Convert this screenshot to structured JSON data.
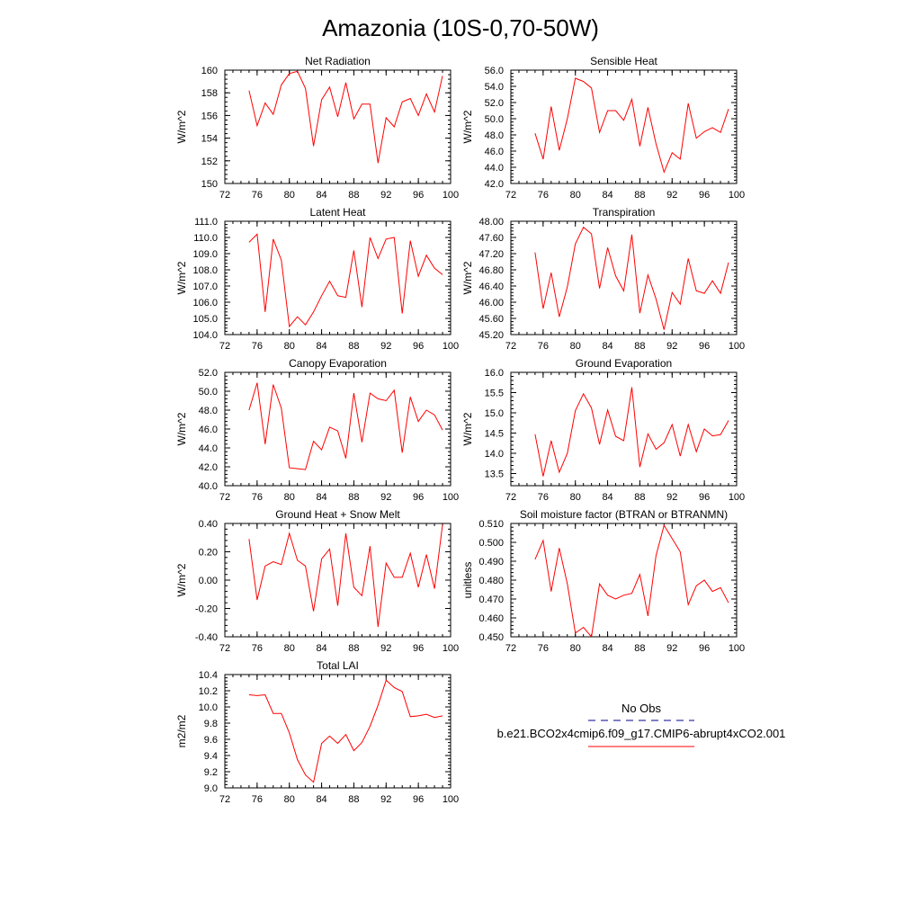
{
  "page_title": "Amazonia (10S-0,70-50W)",
  "colors": {
    "model_line": "#ff0000",
    "obs_line": "#00008b",
    "axis": "#000000"
  },
  "legend": {
    "obs_label": "No Obs",
    "model_label": "b.e21.BCO2x4cmip6.f09_g17.CMIP6-abrupt4xCO2.001"
  },
  "chart_data": [
    {
      "type": "line",
      "title": "Net Radiation",
      "ylabel": "W/m^2",
      "xlim": [
        72,
        100
      ],
      "ylim": [
        150,
        160
      ],
      "xticks": [
        "72",
        "76",
        "80",
        "84",
        "88",
        "92",
        "96",
        "100"
      ],
      "yticks": [
        "150",
        "152",
        "154",
        "156",
        "158",
        "160"
      ],
      "series": [
        {
          "x": [
            75,
            76,
            77,
            78,
            79,
            80,
            81,
            82,
            83,
            84,
            85,
            86,
            87,
            88,
            89,
            90,
            91,
            92,
            93,
            94,
            95,
            96,
            97,
            98,
            99
          ],
          "values": [
            158.2,
            155.1,
            157.1,
            156.1,
            158.7,
            159.7,
            159.9,
            158.4,
            153.3,
            157.4,
            158.5,
            155.9,
            158.9,
            155.7,
            157.0,
            157.0,
            151.8,
            155.8,
            155.0,
            157.2,
            157.5,
            156.0,
            157.9,
            156.3,
            159.5
          ]
        }
      ]
    },
    {
      "type": "line",
      "title": "Sensible Heat",
      "ylabel": "W/m^2",
      "xlim": [
        72,
        100
      ],
      "ylim": [
        42.0,
        56.0
      ],
      "xticks": [
        "72",
        "76",
        "80",
        "84",
        "88",
        "92",
        "96",
        "100"
      ],
      "yticks": [
        "42.0",
        "44.0",
        "46.0",
        "48.0",
        "50.0",
        "52.0",
        "54.0",
        "56.0"
      ],
      "series": [
        {
          "x": [
            75,
            76,
            77,
            78,
            79,
            80,
            81,
            82,
            83,
            84,
            85,
            86,
            87,
            88,
            89,
            90,
            91,
            92,
            93,
            94,
            95,
            96,
            97,
            98,
            99
          ],
          "values": [
            48.2,
            45.0,
            51.5,
            46.1,
            50.0,
            55.0,
            54.6,
            53.8,
            48.3,
            51.0,
            51.0,
            49.8,
            52.4,
            46.6,
            51.4,
            46.9,
            43.4,
            45.8,
            45.0,
            51.9,
            47.6,
            48.4,
            48.9,
            48.3,
            51.2
          ]
        }
      ]
    },
    {
      "type": "line",
      "title": "Latent Heat",
      "ylabel": "W/m^2",
      "xlim": [
        72,
        100
      ],
      "ylim": [
        104.0,
        111.0
      ],
      "xticks": [
        "72",
        "76",
        "80",
        "84",
        "88",
        "92",
        "96",
        "100"
      ],
      "yticks": [
        "104.0",
        "105.0",
        "106.0",
        "107.0",
        "108.0",
        "109.0",
        "110.0",
        "111.0"
      ],
      "series": [
        {
          "x": [
            75,
            76,
            77,
            78,
            79,
            80,
            81,
            82,
            83,
            84,
            85,
            86,
            87,
            88,
            89,
            90,
            91,
            92,
            93,
            94,
            95,
            96,
            97,
            98,
            99
          ],
          "values": [
            109.7,
            110.2,
            105.4,
            109.9,
            108.6,
            104.5,
            105.1,
            104.6,
            105.4,
            106.4,
            107.3,
            106.4,
            106.3,
            109.2,
            105.7,
            110.0,
            108.7,
            109.9,
            110.0,
            105.3,
            109.8,
            107.6,
            108.9,
            108.1,
            107.7
          ]
        }
      ]
    },
    {
      "type": "line",
      "title": "Transpiration",
      "ylabel": "W/m^2",
      "xlim": [
        72,
        100
      ],
      "ylim": [
        45.2,
        48.0
      ],
      "xticks": [
        "72",
        "76",
        "80",
        "84",
        "88",
        "92",
        "96",
        "100"
      ],
      "yticks": [
        "45.20",
        "45.60",
        "46.00",
        "46.40",
        "46.80",
        "47.20",
        "47.60",
        "48.00"
      ],
      "series": [
        {
          "x": [
            75,
            76,
            77,
            78,
            79,
            80,
            81,
            82,
            83,
            84,
            85,
            86,
            87,
            88,
            89,
            90,
            91,
            92,
            93,
            94,
            95,
            96,
            97,
            98,
            99
          ],
          "values": [
            47.23,
            45.84,
            46.73,
            45.64,
            46.38,
            47.44,
            47.85,
            47.69,
            46.34,
            47.35,
            46.65,
            46.28,
            47.67,
            45.73,
            46.67,
            46.08,
            45.32,
            46.24,
            45.95,
            47.08,
            46.28,
            46.22,
            46.53,
            46.22,
            46.98
          ]
        }
      ]
    },
    {
      "type": "line",
      "title": "Canopy Evaporation",
      "ylabel": "W/m^2",
      "xlim": [
        72,
        100
      ],
      "ylim": [
        40.0,
        52.0
      ],
      "xticks": [
        "72",
        "76",
        "80",
        "84",
        "88",
        "92",
        "96",
        "100"
      ],
      "yticks": [
        "40.0",
        "42.0",
        "44.0",
        "46.0",
        "48.0",
        "50.0",
        "52.0"
      ],
      "series": [
        {
          "x": [
            75,
            76,
            77,
            78,
            79,
            80,
            81,
            82,
            83,
            84,
            85,
            86,
            87,
            88,
            89,
            90,
            91,
            92,
            93,
            94,
            95,
            96,
            97,
            98,
            99
          ],
          "values": [
            48.0,
            50.9,
            44.4,
            50.7,
            48.2,
            41.9,
            41.8,
            41.7,
            44.7,
            43.8,
            46.2,
            45.8,
            42.9,
            49.8,
            44.6,
            49.8,
            49.2,
            49.0,
            50.1,
            43.5,
            49.4,
            46.8,
            48.0,
            47.5,
            45.9
          ]
        }
      ]
    },
    {
      "type": "line",
      "title": "Ground Evaporation",
      "ylabel": "W/m^2",
      "xlim": [
        72,
        100
      ],
      "ylim": [
        13.2,
        16.0
      ],
      "xticks": [
        "72",
        "76",
        "80",
        "84",
        "88",
        "92",
        "96",
        "100"
      ],
      "yticks": [
        "13.5",
        "14.0",
        "14.5",
        "15.0",
        "15.5",
        "16.0"
      ],
      "series": [
        {
          "x": [
            75,
            76,
            77,
            78,
            79,
            80,
            81,
            82,
            83,
            84,
            85,
            86,
            87,
            88,
            89,
            90,
            91,
            92,
            93,
            94,
            95,
            96,
            97,
            98,
            99
          ],
          "values": [
            14.47,
            13.43,
            14.31,
            13.53,
            14.0,
            15.05,
            15.47,
            15.12,
            14.22,
            15.07,
            14.42,
            14.31,
            15.63,
            13.66,
            14.48,
            14.1,
            14.26,
            14.71,
            13.93,
            14.71,
            14.04,
            14.6,
            14.43,
            14.46,
            14.81
          ]
        }
      ]
    },
    {
      "type": "line",
      "title": "Ground Heat + Snow Melt",
      "ylabel": "W/m^2",
      "xlim": [
        72,
        100
      ],
      "ylim": [
        -0.4,
        0.4
      ],
      "xticks": [
        "72",
        "76",
        "80",
        "84",
        "88",
        "92",
        "96",
        "100"
      ],
      "yticks": [
        "-0.40",
        "-0.20",
        "0.00",
        "0.20",
        "0.40"
      ],
      "series": [
        {
          "x": [
            75,
            76,
            77,
            78,
            79,
            80,
            81,
            82,
            83,
            84,
            85,
            86,
            87,
            88,
            89,
            90,
            91,
            92,
            93,
            94,
            95,
            96,
            97,
            98,
            99
          ],
          "values": [
            0.29,
            -0.14,
            0.1,
            0.13,
            0.11,
            0.33,
            0.14,
            0.1,
            -0.22,
            0.15,
            0.22,
            -0.18,
            0.33,
            -0.05,
            -0.11,
            0.24,
            -0.33,
            0.12,
            0.02,
            0.02,
            0.19,
            -0.05,
            0.18,
            -0.06,
            0.39
          ]
        }
      ]
    },
    {
      "type": "line",
      "title": "Soil moisture factor (BTRAN or BTRANMN)",
      "ylabel": "unitless",
      "xlim": [
        72,
        100
      ],
      "ylim": [
        0.45,
        0.51
      ],
      "xticks": [
        "72",
        "76",
        "80",
        "84",
        "88",
        "92",
        "96",
        "100"
      ],
      "yticks": [
        "0.450",
        "0.460",
        "0.470",
        "0.480",
        "0.490",
        "0.500",
        "0.510"
      ],
      "series": [
        {
          "x": [
            75,
            76,
            77,
            78,
            79,
            80,
            81,
            82,
            83,
            84,
            85,
            86,
            87,
            88,
            89,
            90,
            91,
            92,
            93,
            94,
            95,
            96,
            97,
            98,
            99
          ],
          "values": [
            0.491,
            0.501,
            0.474,
            0.497,
            0.478,
            0.452,
            0.455,
            0.45,
            0.478,
            0.472,
            0.47,
            0.472,
            0.473,
            0.483,
            0.461,
            0.493,
            0.509,
            0.502,
            0.495,
            0.467,
            0.477,
            0.48,
            0.474,
            0.476,
            0.468
          ]
        }
      ]
    },
    {
      "type": "line",
      "title": "Total LAI",
      "ylabel": "m2/m2",
      "xlim": [
        72,
        100
      ],
      "ylim": [
        9.0,
        10.4
      ],
      "xticks": [
        "72",
        "76",
        "80",
        "84",
        "88",
        "92",
        "96",
        "100"
      ],
      "yticks": [
        "9.0",
        "9.2",
        "9.4",
        "9.6",
        "9.8",
        "10.0",
        "10.2",
        "10.4"
      ],
      "series": [
        {
          "x": [
            75,
            76,
            77,
            78,
            79,
            80,
            81,
            82,
            83,
            84,
            85,
            86,
            87,
            88,
            89,
            90,
            91,
            92,
            93,
            94,
            95,
            96,
            97,
            98,
            99
          ],
          "values": [
            10.15,
            10.14,
            10.15,
            9.92,
            9.92,
            9.68,
            9.35,
            9.16,
            9.07,
            9.55,
            9.64,
            9.55,
            9.66,
            9.46,
            9.56,
            9.76,
            10.02,
            10.33,
            10.24,
            10.19,
            9.88,
            9.89,
            9.91,
            9.87,
            9.89
          ]
        }
      ]
    }
  ]
}
